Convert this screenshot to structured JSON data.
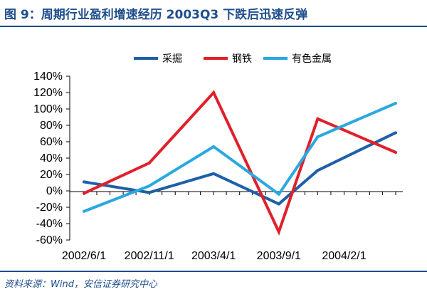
{
  "header": {
    "title": "图 9：周期行业盈利增速经历 2003Q3 下跌后迅速反弹"
  },
  "footer": {
    "source": "资料来源：Wind，安信证券研究中心"
  },
  "chart_data": {
    "type": "line",
    "title": "",
    "xlabel": "",
    "ylabel": "",
    "x": [
      "2002/6/1",
      "2002/11/1",
      "2003/4/1",
      "2003/9/1",
      "2004/2/1"
    ],
    "y_ticks": [
      "140%",
      "120%",
      "100%",
      "80%",
      "60%",
      "40%",
      "20%",
      "0%",
      "-20%",
      "-40%",
      "-60%"
    ],
    "ylim": [
      -60,
      140
    ],
    "y_unit": "%",
    "grid": false,
    "legend_position": "top",
    "series": [
      {
        "name": "采掘",
        "color": "#1f5fa8",
        "points": [
          {
            "x": "2002/6/1",
            "y": 11
          },
          {
            "x": "2002/11/1",
            "y": -2
          },
          {
            "x": "2003/4/1",
            "y": 21
          },
          {
            "x": "2003/9/1",
            "y": -16
          },
          {
            "x": "2003/12/1",
            "y": 25
          },
          {
            "x": "2004/6/1",
            "y": 71
          }
        ]
      },
      {
        "name": "钢铁",
        "color": "#e0202a",
        "points": [
          {
            "x": "2002/6/1",
            "y": -3
          },
          {
            "x": "2002/11/1",
            "y": 34
          },
          {
            "x": "2003/4/1",
            "y": 120
          },
          {
            "x": "2003/9/1",
            "y": -50
          },
          {
            "x": "2003/12/1",
            "y": 88
          },
          {
            "x": "2004/6/1",
            "y": 47
          }
        ]
      },
      {
        "name": "有色金属",
        "color": "#2aa8e0",
        "points": [
          {
            "x": "2002/6/1",
            "y": -25
          },
          {
            "x": "2002/11/1",
            "y": 6
          },
          {
            "x": "2003/4/1",
            "y": 54
          },
          {
            "x": "2003/9/1",
            "y": -4
          },
          {
            "x": "2003/12/1",
            "y": 66
          },
          {
            "x": "2004/6/1",
            "y": 107
          }
        ]
      }
    ]
  }
}
